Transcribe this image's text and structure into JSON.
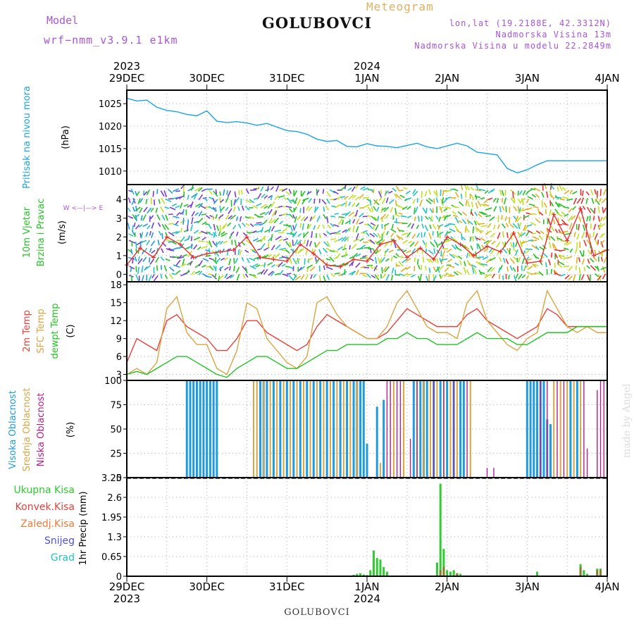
{
  "header": {
    "model_label": "Model",
    "model_run": "wrf−nmm_v3.9.1  e1km",
    "station": "GOLUBOVCI",
    "meteogram": "Meteogram",
    "lonlat": "lon,lat (19.2188E, 42.3312N)",
    "elevation": "Nadmorska Visina 13m",
    "model_elevation": "Nadmorska Visina u modelu 22.2849m"
  },
  "footer": {
    "station": "GOLUBOVCI",
    "watermark": "made by Angel"
  },
  "colors": {
    "pressure": "#1aa3e8",
    "temp2m": "#e8403a",
    "sfc_temp": "#d9a441",
    "dewpt": "#22c322",
    "cloud_high": "#1e9be0",
    "cloud_mid": "#d9a441",
    "cloud_low": "#b0208a",
    "precip_total": "#2ecc2e",
    "precip_conv": "#e8403a",
    "precip_frozen": "#f07a3a",
    "snow": "#5050e0",
    "hail": "#22c3c3",
    "wind_speed": "#e83030"
  },
  "chart_data": [
    {
      "type": "line",
      "panel": "pressure",
      "ylabel_lines": [
        "Pritisak na nivou mora",
        "(hPa)"
      ],
      "y_ticks": [
        1010,
        1015,
        1020,
        1025
      ],
      "ylim": [
        1007,
        1028
      ],
      "x_hours": [
        0,
        3,
        6,
        9,
        12,
        15,
        18,
        21,
        24,
        27,
        30,
        33,
        36,
        39,
        42,
        45,
        48,
        51,
        54,
        57,
        60,
        63,
        66,
        69,
        72,
        75,
        78,
        81,
        84,
        87,
        90,
        93,
        96,
        99,
        102,
        105,
        108,
        111,
        114,
        117,
        120,
        123,
        126,
        129,
        132,
        135,
        138,
        141,
        144
      ],
      "series": [
        {
          "values": [
            1026.2,
            1025.6,
            1025.8,
            1024.2,
            1023.5,
            1023.2,
            1022.6,
            1022.3,
            1023.4,
            1021.1,
            1020.8,
            1021.0,
            1020.7,
            1020.2,
            1020.6,
            1019.8,
            1019.0,
            1018.8,
            1018.2,
            1017.1,
            1016.6,
            1016.8,
            1015.5,
            1015.4,
            1016.1,
            1015.6,
            1015.5,
            1015.2,
            1015.7,
            1016.2,
            1015.4,
            1015.0,
            1015.6,
            1016.2,
            1015.6,
            1014.2,
            1013.9,
            1013.6,
            1010.6,
            1009.6,
            1010.3,
            1011.4,
            1012.3,
            1012.3,
            1012.3,
            1012.3,
            1012.3,
            1012.3,
            1012.3
          ]
        }
      ]
    },
    {
      "type": "line",
      "panel": "wind",
      "ylabel_lines": [
        "10m Vjetar",
        "Brzina i Pravac",
        "(m/s)"
      ],
      "y_ticks": [
        0,
        1,
        2,
        3,
        4
      ],
      "ylim": [
        -0.4,
        4.8
      ],
      "x_hours": [
        0,
        4,
        8,
        12,
        16,
        20,
        24,
        28,
        32,
        36,
        40,
        44,
        48,
        52,
        56,
        60,
        64,
        68,
        72,
        76,
        80,
        84,
        88,
        92,
        96,
        100,
        104,
        108,
        112,
        116,
        120,
        124,
        128,
        132,
        136,
        140,
        144
      ],
      "series": [
        {
          "name": "wind speed",
          "values": [
            0.5,
            1.4,
            0.9,
            2.0,
            1.6,
            0.9,
            1.1,
            1.2,
            1.3,
            2.0,
            0.9,
            0.8,
            0.7,
            1.6,
            1.1,
            0.5,
            0.4,
            0.8,
            0.7,
            1.6,
            1.8,
            0.9,
            1.4,
            0.8,
            2.0,
            1.6,
            1.0,
            1.5,
            1.2,
            2.2,
            0.6,
            0.7,
            3.2,
            1.8,
            3.5,
            1.0,
            1.3
          ]
        }
      ],
      "wind_direction_colors": [
        "#1e9be0",
        "#7a3bd6",
        "#22c3c3",
        "#22c322",
        "#c0e020",
        "#e0b020",
        "#e83030"
      ],
      "compass": "W <—|—> E"
    },
    {
      "type": "line",
      "panel": "temperature",
      "ylabel_lines": [
        "2m Temp",
        "SFC Temp",
        "dewpt Temp",
        "(C)"
      ],
      "y_ticks": [
        3,
        6,
        9,
        12,
        15,
        18
      ],
      "ylim": [
        2,
        18.5
      ],
      "x_hours": [
        0,
        3,
        6,
        9,
        12,
        15,
        18,
        21,
        24,
        27,
        30,
        33,
        36,
        39,
        42,
        45,
        48,
        51,
        54,
        57,
        60,
        63,
        66,
        69,
        72,
        75,
        78,
        81,
        84,
        87,
        90,
        93,
        96,
        99,
        102,
        105,
        108,
        111,
        114,
        117,
        120,
        123,
        126,
        129,
        132,
        135,
        138,
        141,
        144
      ],
      "series": [
        {
          "name": "2m Temp",
          "values": [
            5,
            9,
            8,
            7,
            12,
            13,
            11,
            10,
            9,
            7,
            7,
            9,
            12,
            12,
            10,
            9,
            8,
            7,
            8,
            11,
            13,
            12,
            11,
            10,
            9,
            9,
            10,
            12,
            14,
            13,
            12,
            11,
            11,
            11,
            13,
            14,
            12,
            11,
            10,
            9,
            10,
            11,
            14,
            13,
            11,
            11,
            11,
            11,
            11
          ]
        },
        {
          "name": "SFC Temp",
          "values": [
            3,
            4,
            3,
            5,
            14,
            16,
            10,
            8,
            8,
            4,
            3,
            7,
            15,
            14,
            9,
            7,
            5,
            4,
            6,
            15,
            16,
            13,
            11,
            10,
            9,
            9,
            11,
            15,
            17,
            14,
            11,
            10,
            10,
            9,
            15,
            17,
            12,
            10,
            8,
            7,
            9,
            10,
            17,
            14,
            11,
            10,
            11,
            10,
            10
          ]
        },
        {
          "name": "dewpt Temp",
          "values": [
            3,
            3.5,
            3,
            4,
            5,
            6,
            6,
            5,
            4,
            3,
            2.5,
            4,
            5,
            6,
            6,
            5,
            4,
            4,
            5,
            6,
            7,
            7,
            8,
            8,
            8,
            8,
            9,
            9,
            10,
            9,
            9,
            8,
            8,
            8,
            9,
            10,
            9,
            9,
            9,
            8,
            8,
            9,
            10,
            10,
            10,
            11,
            11,
            11,
            11
          ]
        }
      ]
    },
    {
      "type": "bar",
      "panel": "clouds",
      "ylabel_lines": [
        "Visoka Oblacnost",
        "Srednja Oblacnost",
        "Niska Oblacnost",
        "(%)"
      ],
      "y_ticks": [
        0,
        25,
        50,
        75,
        100
      ],
      "ylim": [
        0,
        100
      ],
      "series": [
        {
          "name": "Visoka Oblacnost",
          "bars": [
            [
              18,
              100
            ],
            [
              19,
              100
            ],
            [
              20,
              100
            ],
            [
              21,
              100
            ],
            [
              22,
              100
            ],
            [
              23,
              100
            ],
            [
              24,
              100
            ],
            [
              25,
              100
            ],
            [
              26,
              100
            ],
            [
              27,
              100
            ],
            [
              40,
              100
            ],
            [
              41,
              100
            ],
            [
              42,
              100
            ],
            [
              44,
              100
            ],
            [
              46,
              100
            ],
            [
              48,
              100
            ],
            [
              50,
              100
            ],
            [
              52,
              100
            ],
            [
              54,
              100
            ],
            [
              56,
              100
            ],
            [
              58,
              100
            ],
            [
              60,
              100
            ],
            [
              62,
              100
            ],
            [
              64,
              100
            ],
            [
              66,
              100
            ],
            [
              68,
              100
            ],
            [
              69,
              100
            ],
            [
              70,
              100
            ],
            [
              71,
              100
            ],
            [
              72,
              35
            ],
            [
              75,
              73
            ],
            [
              77,
              80
            ],
            [
              86,
              100
            ],
            [
              88,
              100
            ],
            [
              89,
              100
            ],
            [
              90,
              100
            ],
            [
              92,
              100
            ],
            [
              94,
              100
            ],
            [
              96,
              100
            ],
            [
              98,
              100
            ],
            [
              100,
              100
            ],
            [
              101,
              100
            ],
            [
              120,
              100
            ],
            [
              121,
              100
            ],
            [
              122,
              100
            ],
            [
              123,
              100
            ],
            [
              124,
              100
            ],
            [
              125,
              100
            ],
            [
              126,
              60
            ],
            [
              127,
              55
            ],
            [
              133,
              100
            ],
            [
              135,
              100
            ]
          ]
        },
        {
          "name": "Srednja Oblacnost",
          "bars": [
            [
              38,
              100
            ],
            [
              39,
              100
            ],
            [
              41,
              100
            ],
            [
              43,
              100
            ],
            [
              45,
              100
            ],
            [
              47,
              100
            ],
            [
              49,
              100
            ],
            [
              51,
              100
            ],
            [
              53,
              100
            ],
            [
              55,
              100
            ],
            [
              57,
              100
            ],
            [
              59,
              100
            ],
            [
              61,
              100
            ],
            [
              63,
              100
            ],
            [
              65,
              100
            ],
            [
              67,
              100
            ],
            [
              69,
              100
            ],
            [
              76,
              15
            ],
            [
              80,
              100
            ],
            [
              83,
              100
            ],
            [
              87,
              100
            ],
            [
              89,
              100
            ],
            [
              91,
              100
            ],
            [
              93,
              100
            ],
            [
              95,
              100
            ],
            [
              97,
              100
            ],
            [
              99,
              100
            ],
            [
              103,
              100
            ],
            [
              128,
              100
            ],
            [
              130,
              100
            ],
            [
              132,
              100
            ],
            [
              134,
              100
            ],
            [
              136,
              100
            ]
          ]
        },
        {
          "name": "Niska Oblacnost",
          "bars": [
            [
              78,
              100
            ],
            [
              79,
              100
            ],
            [
              81,
              100
            ],
            [
              82,
              100
            ],
            [
              85,
              40
            ],
            [
              87,
              100
            ],
            [
              92,
              100
            ],
            [
              95,
              100
            ],
            [
              98,
              100
            ],
            [
              102,
              100
            ],
            [
              108,
              10
            ],
            [
              110,
              10
            ],
            [
              124,
              100
            ],
            [
              126,
              100
            ],
            [
              129,
              100
            ],
            [
              131,
              100
            ],
            [
              137,
              100
            ],
            [
              138,
              30
            ],
            [
              141,
              90
            ],
            [
              142,
              100
            ],
            [
              143,
              100
            ]
          ]
        }
      ]
    },
    {
      "type": "bar",
      "panel": "precip",
      "ylabel_lines": [
        "1hr Precip (mm)"
      ],
      "legend": [
        "Ukupna Kisa",
        "Konvek.Kisa",
        "Zaledj.Kisa",
        "Snijeg",
        "Grad"
      ],
      "y_ticks": [
        0,
        0.65,
        1.3,
        1.95,
        2.6,
        3.25
      ],
      "ylim": [
        0,
        3.25
      ],
      "series": [
        {
          "name": "Ukupna Kisa",
          "bars": [
            [
              68,
              0.05
            ],
            [
              69,
              0.08
            ],
            [
              70,
              0.1
            ],
            [
              71,
              0.06
            ],
            [
              72,
              0.04
            ],
            [
              73,
              0.2
            ],
            [
              74,
              0.85
            ],
            [
              75,
              0.6
            ],
            [
              76,
              0.55
            ],
            [
              77,
              0.3
            ],
            [
              78,
              0.15
            ],
            [
              93,
              0.45
            ],
            [
              94,
              3.05
            ],
            [
              95,
              0.9
            ],
            [
              96,
              0.2
            ],
            [
              97,
              0.15
            ],
            [
              98,
              0.2
            ],
            [
              99,
              0.1
            ],
            [
              100,
              0.08
            ],
            [
              123,
              0.15
            ],
            [
              136,
              0.4
            ],
            [
              137,
              0.2
            ],
            [
              138,
              0.08
            ],
            [
              141,
              0.25
            ],
            [
              142,
              0.25
            ]
          ]
        },
        {
          "name": "Konvek.Kisa",
          "bars": [
            [
              94,
              0.2
            ],
            [
              95,
              0.3
            ],
            [
              99,
              0.1
            ],
            [
              136,
              0.3
            ],
            [
              141,
              0.2
            ],
            [
              142,
              0.2
            ]
          ]
        }
      ]
    }
  ],
  "x_axis": {
    "top_year_labels": [
      {
        "hour": 0,
        "text": "2023"
      },
      {
        "hour": 72,
        "text": "2024"
      }
    ],
    "day_labels": [
      {
        "hour": 0,
        "text": "29DEC"
      },
      {
        "hour": 24,
        "text": "30DEC"
      },
      {
        "hour": 48,
        "text": "31DEC"
      },
      {
        "hour": 72,
        "text": "1JAN"
      },
      {
        "hour": 96,
        "text": "2JAN"
      },
      {
        "hour": 120,
        "text": "3JAN"
      },
      {
        "hour": 144,
        "text": "4JAN"
      }
    ]
  }
}
